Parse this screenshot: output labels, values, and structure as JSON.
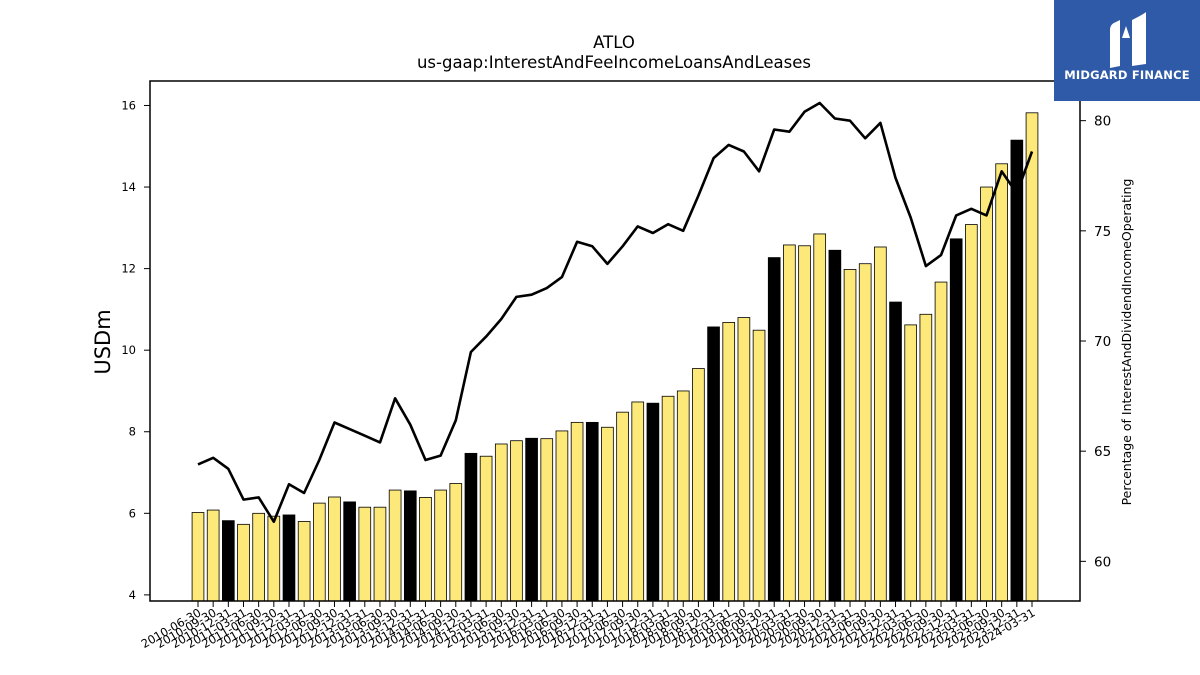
{
  "chart_data": {
    "type": "bar",
    "title": "ATLO",
    "subtitle": "us-gaap:InterestAndFeeIncomeLoansAndLeases",
    "ylabel": "USDm",
    "y2label": "Percentage of InterestAndDividendIncomeOperating",
    "ylim": [
      3.85,
      16.6
    ],
    "y2lim": [
      58.2,
      81.8
    ],
    "yticks": [
      4,
      6,
      8,
      10,
      12,
      14,
      16
    ],
    "y2ticks": [
      60,
      65,
      70,
      75,
      80
    ],
    "colors": {
      "bar_default": "#fde97a",
      "bar_q4": "#000000",
      "line": "#000000"
    },
    "categories": [
      "2010-06-30",
      "2010-09-30",
      "2010-12-31",
      "2011-03-31",
      "2011-06-30",
      "2011-09-30",
      "2011-12-31",
      "2012-03-31",
      "2012-06-30",
      "2012-09-30",
      "2012-12-31",
      "2013-03-31",
      "2013-06-30",
      "2013-09-30",
      "2013-12-31",
      "2014-03-31",
      "2014-06-30",
      "2014-09-30",
      "2014-12-31",
      "2015-03-31",
      "2015-06-30",
      "2015-09-30",
      "2015-12-31",
      "2016-03-31",
      "2016-06-30",
      "2016-09-30",
      "2016-12-31",
      "2017-03-31",
      "2017-06-30",
      "2017-09-30",
      "2017-12-31",
      "2018-03-31",
      "2018-06-30",
      "2018-09-30",
      "2018-12-31",
      "2019-03-31",
      "2019-06-30",
      "2019-09-30",
      "2019-12-31",
      "2020-03-31",
      "2020-06-30",
      "2020-09-30",
      "2020-12-31",
      "2021-03-31",
      "2021-06-30",
      "2021-09-30",
      "2021-12-31",
      "2022-03-31",
      "2022-06-30",
      "2022-09-30",
      "2022-12-31",
      "2023-03-31",
      "2023-06-30",
      "2023-09-30",
      "2023-12-31",
      "2024-03-31"
    ],
    "series": [
      {
        "type": "bar",
        "values": [
          6.02,
          6.08,
          5.82,
          5.73,
          6.0,
          5.93,
          5.96,
          5.8,
          6.25,
          6.4,
          6.28,
          6.15,
          6.15,
          6.57,
          6.55,
          6.39,
          6.57,
          6.73,
          7.47,
          7.4,
          7.7,
          7.78,
          7.84,
          7.83,
          8.02,
          8.23,
          8.23,
          8.11,
          8.48,
          8.73,
          8.7,
          8.87,
          9.0,
          9.55,
          10.57,
          10.68,
          10.8,
          10.49,
          12.27,
          12.58,
          12.56,
          12.85,
          12.45,
          11.98,
          12.12,
          12.53,
          11.18,
          10.62,
          10.88,
          11.67,
          12.73,
          13.08,
          14.0,
          14.57,
          15.15,
          15.82
        ]
      },
      {
        "type": "line",
        "values": [
          64.4,
          64.7,
          64.2,
          62.8,
          62.9,
          61.8,
          63.5,
          63.1,
          64.6,
          66.3,
          66.0,
          65.7,
          65.4,
          67.4,
          66.2,
          64.6,
          64.8,
          66.4,
          69.5,
          70.2,
          71.0,
          72.0,
          72.1,
          72.4,
          72.9,
          74.5,
          74.3,
          73.5,
          74.3,
          75.2,
          74.9,
          75.3,
          75.0,
          76.6,
          78.3,
          78.9,
          78.6,
          77.7,
          79.6,
          79.5,
          80.4,
          80.8,
          80.1,
          80.0,
          79.2,
          79.9,
          77.4,
          75.6,
          73.4,
          73.9,
          75.7,
          76.0,
          75.7,
          77.7,
          76.7,
          78.6
        ]
      }
    ]
  },
  "brand": {
    "name": "MIDGARD FINANCE",
    "logo_icon": "stylized-m-icon"
  }
}
